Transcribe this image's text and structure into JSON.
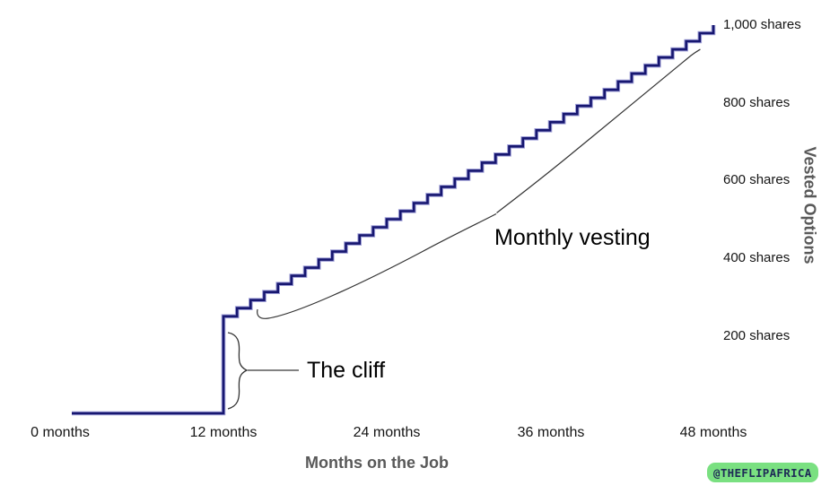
{
  "chart_data": {
    "type": "line",
    "subtype": "step",
    "title": "",
    "xlabel": "Months on the Job",
    "ylabel": "Vested Options",
    "xlim": [
      0,
      48
    ],
    "ylim": [
      0,
      1000
    ],
    "grid": false,
    "legend": "none",
    "line_color": "#171770",
    "line_halo_color": "#9d9dd6",
    "x_ticks": [
      {
        "month": 0,
        "label": "0 months"
      },
      {
        "month": 12,
        "label": "12 months"
      },
      {
        "month": 24,
        "label": "24 months"
      },
      {
        "month": 36,
        "label": "36 months"
      },
      {
        "month": 48,
        "label": "48 months"
      }
    ],
    "y_ticks": [
      {
        "value": 200,
        "label": "200 shares"
      },
      {
        "value": 400,
        "label": "400 shares"
      },
      {
        "value": 600,
        "label": "600 shares"
      },
      {
        "value": 800,
        "label": "800 shares"
      },
      {
        "value": 1000,
        "label": "1,000 shares"
      }
    ],
    "series": [
      {
        "name": "Vested options",
        "shape": "cliff-then-monthly-steps",
        "start_month": 0,
        "start_shares": 0,
        "cliff_month": 12,
        "cliff_shares": 250,
        "end_month": 48,
        "end_shares": 1000,
        "monthly_increment_shares": 20.83,
        "breakpoints": [
          {
            "month": 0,
            "shares": 0
          },
          {
            "month": 12,
            "shares": 250
          },
          {
            "month": 48,
            "shares": 1000
          }
        ]
      }
    ],
    "annotations": [
      {
        "id": "cliff",
        "label": "The cliff",
        "points_at": "vertical jump at 12 months"
      },
      {
        "id": "monthly",
        "label": "Monthly vesting",
        "points_at": "stair steps from 12 to 48 months"
      }
    ]
  },
  "watermark": {
    "handle": "@THEFLIPAFRICA",
    "bg_color": "#7ae081",
    "text_color": "#1e2b56"
  }
}
